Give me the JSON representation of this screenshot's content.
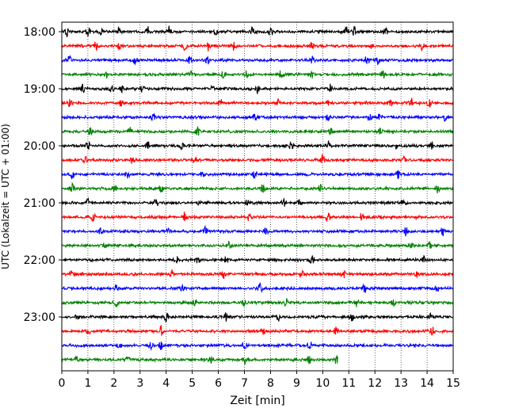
{
  "chart_data": {
    "type": "line",
    "title": "",
    "xlabel": "Zeit  [min]",
    "ylabel": "UTC (Lokalzeit = UTC + 01:00)",
    "xlim": [
      0,
      15
    ],
    "x_ticks": [
      "0",
      "1",
      "2",
      "3",
      "4",
      "5",
      "6",
      "7",
      "8",
      "9",
      "10",
      "11",
      "12",
      "13",
      "14",
      "15"
    ],
    "y_ticks": [
      {
        "label": "18:00",
        "trace": 0
      },
      {
        "label": "19:00",
        "trace": 4
      },
      {
        "label": "20:00",
        "trace": 8
      },
      {
        "label": "21:00",
        "trace": 12
      },
      {
        "label": "22:00",
        "trace": 16
      },
      {
        "label": "23:00",
        "trace": 20
      }
    ],
    "grid": "vertical dotted at each minute",
    "trace_minutes": 15,
    "last_trace_minutes": 10.6,
    "colors": [
      "#000000",
      "#ff0000",
      "#0000ff",
      "#008000"
    ],
    "traces": [
      {
        "start": "18:00",
        "bursts": [
          0.2,
          1.0,
          1.5,
          2.2,
          3.3,
          4.1,
          5.9,
          7.3,
          8.0,
          10.9,
          11.2,
          12.4
        ]
      },
      {
        "start": "18:15",
        "bursts": [
          1.3,
          2.2,
          4.7,
          5.6,
          6.6,
          9.6,
          11.9,
          13.8
        ]
      },
      {
        "start": "18:30",
        "bursts": [
          0.3,
          2.8,
          4.9,
          5.6,
          9.6,
          11.7,
          12.1
        ]
      },
      {
        "start": "18:45",
        "bursts": [
          1.7,
          4.9,
          6.2,
          7.1,
          8.4,
          9.6,
          12.3
        ]
      },
      {
        "start": "19:00",
        "bursts": [
          0.8,
          1.9,
          2.3,
          3.1,
          5.8,
          7.5,
          10.3
        ]
      },
      {
        "start": "19:15",
        "bursts": [
          0.3,
          2.3,
          6.1,
          8.3,
          10.2,
          12.6,
          13.4,
          14.1
        ]
      },
      {
        "start": "19:30",
        "bursts": [
          3.5,
          7.4,
          10.2,
          11.8,
          12.2,
          14.7
        ]
      },
      {
        "start": "19:45",
        "bursts": [
          1.1,
          2.6,
          5.2,
          10.3,
          12.2
        ]
      },
      {
        "start": "20:00",
        "bursts": [
          1.0,
          3.3,
          4.6,
          8.8,
          10.2,
          12.8,
          14.2
        ]
      },
      {
        "start": "20:15",
        "bursts": [
          0.9,
          2.7,
          5.1,
          10.0,
          13.1
        ]
      },
      {
        "start": "20:30",
        "bursts": [
          0.4,
          2.5,
          5.4,
          7.4,
          12.9
        ]
      },
      {
        "start": "20:45",
        "bursts": [
          0.4,
          2.0,
          3.8,
          7.7,
          9.9,
          14.4
        ]
      },
      {
        "start": "21:00",
        "bursts": [
          1.0,
          3.6,
          5.2,
          7.1,
          8.5,
          9.1,
          13.1
        ]
      },
      {
        "start": "21:15",
        "bursts": [
          1.2,
          4.7,
          7.2,
          10.2,
          11.5
        ]
      },
      {
        "start": "21:30",
        "bursts": [
          1.5,
          4.1,
          5.5,
          7.8,
          13.2,
          14.6
        ]
      },
      {
        "start": "21:45",
        "bursts": [
          1.6,
          6.4,
          13.4,
          14.1
        ]
      },
      {
        "start": "22:00",
        "bursts": [
          4.4,
          5.2,
          6.3,
          9.6,
          13.9
        ]
      },
      {
        "start": "22:15",
        "bursts": [
          0.4,
          4.2,
          6.2,
          9.2,
          10.8,
          13.6
        ]
      },
      {
        "start": "22:30",
        "bursts": [
          2.1,
          4.6,
          7.6,
          11.6,
          14.4
        ]
      },
      {
        "start": "22:45",
        "bursts": [
          2.1,
          5.1,
          7.0,
          8.6,
          11.3,
          12.7
        ]
      },
      {
        "start": "23:00",
        "bursts": [
          0.6,
          4.0,
          6.3,
          8.3,
          11.1,
          14.1
        ]
      },
      {
        "start": "23:15",
        "bursts": [
          1.0,
          3.8,
          7.7,
          10.5,
          14.2
        ]
      },
      {
        "start": "23:30",
        "bursts": [
          2.2,
          3.4,
          3.8,
          7.0,
          9.5
        ]
      },
      {
        "start": "23:45",
        "bursts": [
          0.6,
          2.5,
          5.7,
          7.0,
          9.5,
          10.5
        ]
      }
    ]
  }
}
